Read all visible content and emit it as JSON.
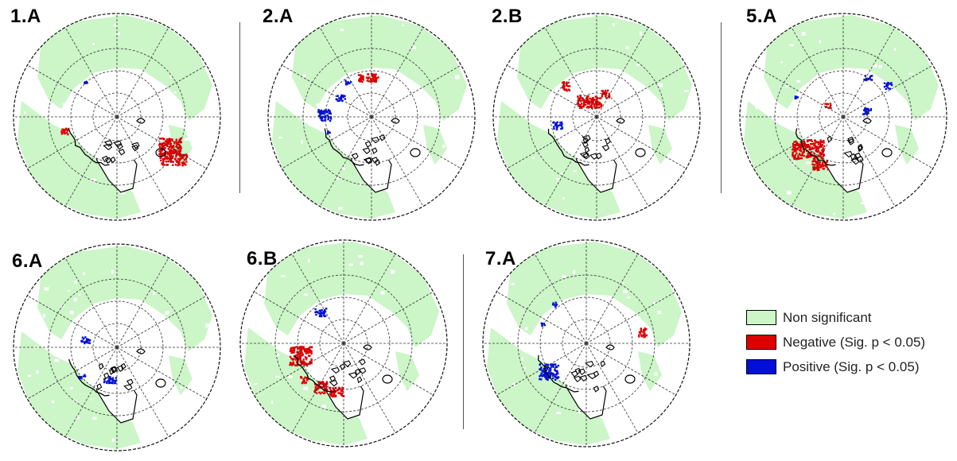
{
  "panels": [
    {
      "label": "1.A",
      "red": [
        [
          66,
          36,
          14,
          10
        ],
        [
          70,
          52,
          17,
          8
        ],
        [
          -66,
          17,
          5,
          4
        ]
      ],
      "blue": [
        [
          -40,
          -45,
          2,
          2
        ]
      ],
      "lagWhite": 0.15
    },
    {
      "label": "2.A",
      "red": [
        [
          -5,
          -50,
          13,
          5
        ]
      ],
      "blue": [
        [
          -60,
          -3,
          8,
          7
        ],
        [
          -40,
          -25,
          6,
          4
        ],
        [
          -30,
          -45,
          4,
          3
        ],
        [
          -55,
          20,
          2,
          3
        ]
      ],
      "lagWhite": 0.2
    },
    {
      "label": "2.B",
      "red": [
        [
          -10,
          -20,
          15,
          8
        ],
        [
          10,
          -30,
          5,
          5
        ],
        [
          -40,
          -40,
          5,
          6
        ]
      ],
      "blue": [
        [
          -50,
          10,
          6,
          5
        ]
      ],
      "lagWhite": 0.15
    },
    {
      "label": "5.A",
      "red": [
        [
          -45,
          40,
          20,
          12
        ],
        [
          -30,
          60,
          10,
          6
        ],
        [
          -20,
          -15,
          4,
          3
        ]
      ],
      "blue": [
        [
          30,
          -50,
          5,
          3
        ],
        [
          55,
          -40,
          5,
          4
        ],
        [
          30,
          -8,
          6,
          4
        ],
        [
          -60,
          -25,
          2,
          2
        ]
      ],
      "lagWhite": 0.25
    },
    {
      "label": "6.A",
      "red": [],
      "blue": [
        [
          -40,
          -10,
          6,
          4
        ],
        [
          -10,
          40,
          8,
          4
        ],
        [
          -45,
          35,
          4,
          3
        ]
      ],
      "lagWhite": 0.35
    },
    {
      "label": "6.B",
      "red": [
        [
          -55,
          15,
          14,
          12
        ],
        [
          -30,
          55,
          8,
          8
        ],
        [
          -10,
          60,
          9,
          6
        ],
        [
          -50,
          45,
          5,
          4
        ]
      ],
      "blue": [
        [
          -30,
          -40,
          7,
          5
        ]
      ],
      "lagWhite": 0.3
    },
    {
      "label": "7.A",
      "red": [
        [
          70,
          -15,
          5,
          6
        ]
      ],
      "blue": [
        [
          -48,
          35,
          12,
          10
        ],
        [
          -40,
          -50,
          3,
          3
        ],
        [
          -55,
          -25,
          3,
          2
        ]
      ],
      "lagWhite": 0.2
    }
  ],
  "legend": [
    {
      "label": "Non significant",
      "color": "#ccf5c8"
    },
    {
      "label": "Negative (Sig. p < 0.05)",
      "color": "#dd0000"
    },
    {
      "label": "Positive (Sig. p < 0.05)",
      "color": "#0010d8"
    }
  ],
  "colors": {
    "land": "#ccf5c8",
    "negative": "#dd0000",
    "positive": "#0010d8",
    "coast": "#000000"
  }
}
